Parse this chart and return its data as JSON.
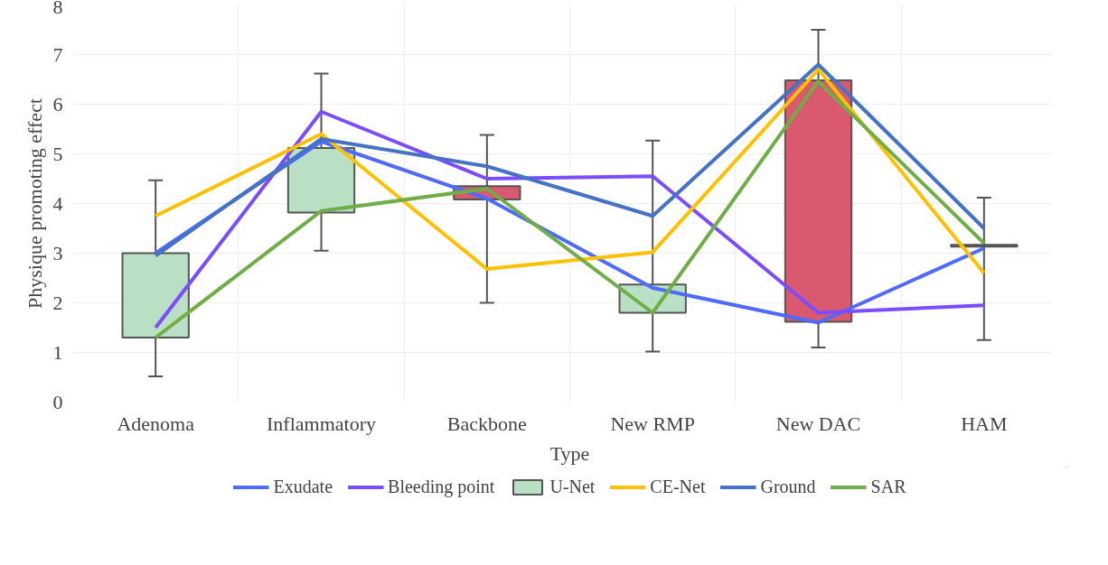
{
  "chart_data": {
    "type": "line",
    "xlabel": "Type",
    "ylabel": "Physique promoting effect",
    "categories": [
      "Adenoma",
      "Inflammatory",
      "Backbone",
      "New RMP",
      "New DAC",
      "HAM"
    ],
    "ylim": [
      0,
      8
    ],
    "yticks": [
      0,
      1,
      2,
      3,
      4,
      5,
      6,
      7,
      8
    ],
    "grid": true,
    "legend": "bottom",
    "series": [
      {
        "name": "Exudate",
        "color": "#4f6bff",
        "values": [
          3.0,
          5.25,
          4.1,
          2.3,
          1.6,
          3.1
        ]
      },
      {
        "name": "Bleeding point",
        "color": "#7c4dff",
        "values": [
          1.5,
          5.85,
          4.5,
          4.55,
          1.8,
          1.95
        ]
      },
      {
        "name": "U-Net",
        "type": "bar",
        "color": "#e8507a",
        "colors": [
          "#b9e0c4",
          "#b9e0c4",
          "#d9596f",
          "#b9e0c4",
          "#d9596f",
          "#d9596f"
        ],
        "base": [
          1.3,
          3.82,
          4.08,
          1.8,
          1.62,
          3.13
        ],
        "values": [
          1.7,
          1.3,
          0.27,
          0.57,
          4.86,
          0.04
        ]
      },
      {
        "name": "CE-Net",
        "color": "#ffc000",
        "values": [
          3.75,
          5.4,
          2.68,
          3.02,
          6.7,
          2.6
        ]
      },
      {
        "name": "Ground",
        "color": "#4472c4",
        "values": [
          2.95,
          5.3,
          4.75,
          3.75,
          6.8,
          3.5
        ]
      },
      {
        "name": "SAR",
        "color": "#70ad47",
        "values": [
          1.3,
          3.85,
          4.3,
          1.8,
          6.46,
          3.2
        ],
        "errors": [
          [
            0.52,
            4.47
          ],
          [
            3.05,
            6.62
          ],
          [
            2.0,
            5.38
          ],
          [
            1.02,
            5.27
          ],
          [
            1.1,
            7.5
          ],
          [
            1.25,
            4.12
          ]
        ]
      }
    ]
  }
}
